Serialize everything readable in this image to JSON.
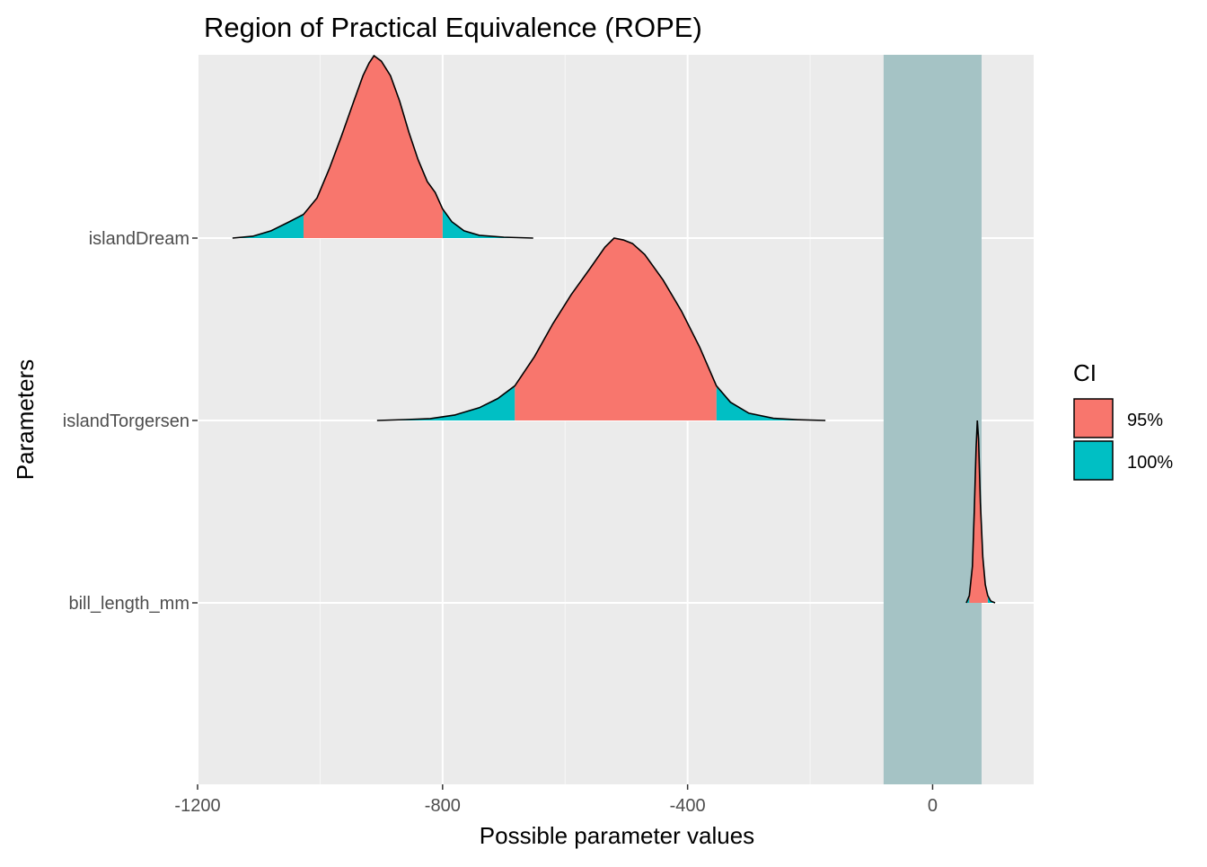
{
  "chart_data": {
    "type": "area",
    "title": "Region of Practical Equivalence (ROPE)",
    "xlabel": "Possible parameter values",
    "ylabel": "Parameters",
    "xlim": [
      -1200,
      165
    ],
    "x_ticks": [
      -1200,
      -800,
      -400,
      0
    ],
    "x_tick_labels": [
      "-1200",
      "-800",
      "-400",
      "0"
    ],
    "categories": [
      "islandDream",
      "islandTorgersen",
      "bill_length_mm"
    ],
    "grid": true,
    "rope": {
      "low": -80,
      "high": 80,
      "color": "#a5c3c5"
    },
    "legend": {
      "title": "CI",
      "position": "right",
      "entries": [
        {
          "label": "95%",
          "color": "#f8766d"
        },
        {
          "label": "100%",
          "color": "#00bfc4"
        }
      ]
    },
    "series": [
      {
        "parameter": "islandDream",
        "ci95": [
          -1027,
          -800
        ],
        "ci100": [
          -1143,
          -652
        ],
        "density": [
          [
            -1143,
            0.0
          ],
          [
            -1110,
            0.01
          ],
          [
            -1080,
            0.04
          ],
          [
            -1050,
            0.09
          ],
          [
            -1027,
            0.13
          ],
          [
            -1005,
            0.22
          ],
          [
            -985,
            0.38
          ],
          [
            -965,
            0.56
          ],
          [
            -945,
            0.75
          ],
          [
            -930,
            0.89
          ],
          [
            -920,
            0.96
          ],
          [
            -912,
            1.0
          ],
          [
            -900,
            0.97
          ],
          [
            -885,
            0.89
          ],
          [
            -870,
            0.75
          ],
          [
            -855,
            0.58
          ],
          [
            -840,
            0.43
          ],
          [
            -825,
            0.31
          ],
          [
            -812,
            0.25
          ],
          [
            -800,
            0.16
          ],
          [
            -785,
            0.09
          ],
          [
            -765,
            0.04
          ],
          [
            -740,
            0.015
          ],
          [
            -700,
            0.005
          ],
          [
            -652,
            0.0
          ]
        ]
      },
      {
        "parameter": "islandTorgersen",
        "ci95": [
          -682,
          -353
        ],
        "ci100": [
          -907,
          -175
        ],
        "density": [
          [
            -907,
            0.0
          ],
          [
            -860,
            0.005
          ],
          [
            -820,
            0.01
          ],
          [
            -780,
            0.03
          ],
          [
            -740,
            0.07
          ],
          [
            -710,
            0.12
          ],
          [
            -682,
            0.19
          ],
          [
            -650,
            0.35
          ],
          [
            -620,
            0.53
          ],
          [
            -590,
            0.69
          ],
          [
            -560,
            0.83
          ],
          [
            -535,
            0.95
          ],
          [
            -520,
            1.0
          ],
          [
            -505,
            0.99
          ],
          [
            -490,
            0.97
          ],
          [
            -470,
            0.91
          ],
          [
            -440,
            0.77
          ],
          [
            -410,
            0.6
          ],
          [
            -380,
            0.4
          ],
          [
            -353,
            0.19
          ],
          [
            -330,
            0.1
          ],
          [
            -300,
            0.04
          ],
          [
            -260,
            0.012
          ],
          [
            -220,
            0.004
          ],
          [
            -175,
            0.0
          ]
        ]
      },
      {
        "parameter": "bill_length_mm",
        "ci95": [
          60,
          90
        ],
        "ci100": [
          55,
          102
        ],
        "density": [
          [
            55,
            0.0
          ],
          [
            60,
            0.04
          ],
          [
            65,
            0.2
          ],
          [
            68,
            0.5
          ],
          [
            71,
            0.85
          ],
          [
            73,
            1.0
          ],
          [
            75,
            0.9
          ],
          [
            78,
            0.55
          ],
          [
            82,
            0.25
          ],
          [
            86,
            0.1
          ],
          [
            90,
            0.04
          ],
          [
            95,
            0.01
          ],
          [
            102,
            0.0
          ]
        ]
      }
    ]
  }
}
